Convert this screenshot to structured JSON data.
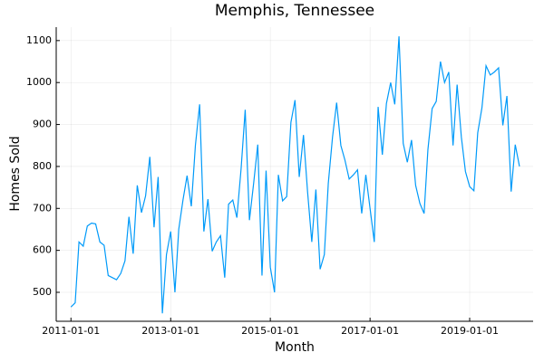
{
  "chart_data": {
    "type": "line",
    "title": "Memphis, Tennessee",
    "x_label": "Month",
    "y_label": "Homes Sold",
    "x": [
      "2011-01-01",
      "2011-02-01",
      "2011-03-01",
      "2011-04-01",
      "2011-05-01",
      "2011-06-01",
      "2011-07-01",
      "2011-08-01",
      "2011-09-01",
      "2011-10-01",
      "2011-11-01",
      "2011-12-01",
      "2012-01-01",
      "2012-02-01",
      "2012-03-01",
      "2012-04-01",
      "2012-05-01",
      "2012-06-01",
      "2012-07-01",
      "2012-08-01",
      "2012-09-01",
      "2012-10-01",
      "2012-11-01",
      "2012-12-01",
      "2013-01-01",
      "2013-02-01",
      "2013-03-01",
      "2013-04-01",
      "2013-05-01",
      "2013-06-01",
      "2013-07-01",
      "2013-08-01",
      "2013-09-01",
      "2013-10-01",
      "2013-11-01",
      "2013-12-01",
      "2014-01-01",
      "2014-02-01",
      "2014-03-01",
      "2014-04-01",
      "2014-05-01",
      "2014-06-01",
      "2014-07-01",
      "2014-08-01",
      "2014-09-01",
      "2014-10-01",
      "2014-11-01",
      "2014-12-01",
      "2015-01-01",
      "2015-02-01",
      "2015-03-01",
      "2015-04-01",
      "2015-05-01",
      "2015-06-01",
      "2015-07-01",
      "2015-08-01",
      "2015-09-01",
      "2015-10-01",
      "2015-11-01",
      "2015-12-01",
      "2016-01-01",
      "2016-02-01",
      "2016-03-01",
      "2016-04-01",
      "2016-05-01",
      "2016-06-01",
      "2016-07-01",
      "2016-08-01",
      "2016-09-01",
      "2016-10-01",
      "2016-11-01",
      "2016-12-01",
      "2017-01-01",
      "2017-02-01",
      "2017-03-01",
      "2017-04-01",
      "2017-05-01",
      "2017-06-01",
      "2017-07-01",
      "2017-08-01",
      "2017-09-01",
      "2017-10-01",
      "2017-11-01",
      "2017-12-01",
      "2018-01-01",
      "2018-02-01",
      "2018-03-01",
      "2018-04-01",
      "2018-05-01",
      "2018-06-01",
      "2018-07-01",
      "2018-08-01",
      "2018-09-01",
      "2018-10-01",
      "2018-11-01",
      "2018-12-01",
      "2019-01-01",
      "2019-02-01",
      "2019-03-01",
      "2019-04-01",
      "2019-05-01",
      "2019-06-01",
      "2019-07-01",
      "2019-08-01",
      "2019-09-01",
      "2019-10-01",
      "2019-11-01",
      "2019-12-01",
      "2020-01-01"
    ],
    "series": [
      {
        "name": "Homes Sold",
        "color": "#009af9",
        "values": [
          465,
          475,
          620,
          610,
          658,
          665,
          663,
          620,
          612,
          540,
          535,
          530,
          545,
          575,
          680,
          592,
          755,
          690,
          730,
          823,
          655,
          775,
          450,
          590,
          645,
          500,
          650,
          720,
          778,
          705,
          850,
          948,
          645,
          722,
          598,
          620,
          635,
          535,
          710,
          720,
          678,
          795,
          935,
          672,
          760,
          852,
          540,
          790,
          560,
          500,
          780,
          718,
          728,
          905,
          958,
          775,
          875,
          740,
          620,
          745,
          555,
          590,
          760,
          870,
          952,
          850,
          815,
          770,
          780,
          792,
          688,
          780,
          700,
          620,
          942,
          828,
          950,
          1000,
          948,
          1110,
          855,
          810,
          863,
          755,
          712,
          688,
          840,
          938,
          955,
          1050,
          1000,
          1025,
          850,
          995,
          870,
          788,
          752,
          742,
          880,
          940,
          1040,
          1018,
          1025,
          1035,
          898,
          968,
          740,
          852,
          800
        ]
      }
    ],
    "xlim": [
      "2010-09-15",
      "2020-04-10"
    ],
    "xticks": [
      "2011-01-01",
      "2013-01-01",
      "2015-01-01",
      "2017-01-01",
      "2019-01-01"
    ],
    "ylim": [
      431,
      1132
    ],
    "yticks": [
      500,
      600,
      700,
      800,
      900,
      1000,
      1100
    ],
    "grid": true
  }
}
